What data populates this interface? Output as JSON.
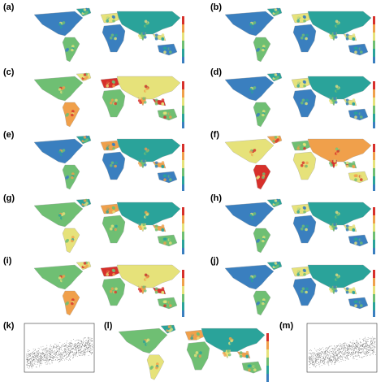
{
  "panels": [
    {
      "label": "(a)",
      "scheme": "blue"
    },
    {
      "label": "(b)",
      "scheme": "blue"
    },
    {
      "label": "(c)",
      "scheme": "warm"
    },
    {
      "label": "(d)",
      "scheme": "blue"
    },
    {
      "label": "(e)",
      "scheme": "mixed"
    },
    {
      "label": "(f)",
      "scheme": "yellow"
    },
    {
      "label": "(g)",
      "scheme": "green"
    },
    {
      "label": "(h)",
      "scheme": "blue"
    },
    {
      "label": "(i)",
      "scheme": "warm"
    },
    {
      "label": "(j)",
      "scheme": "blue"
    },
    {
      "label": "(k)",
      "scheme": "scatter"
    },
    {
      "label": "(l)",
      "scheme": "green"
    },
    {
      "label": "(m)",
      "scheme": "scatter"
    }
  ],
  "colors": {
    "ocean_blue": "#3a7fbf",
    "teal": "#2aa39a",
    "green": "#6fbf73",
    "yellow": "#e6e27a",
    "orange": "#f0a04b",
    "red": "#d7302b"
  }
}
